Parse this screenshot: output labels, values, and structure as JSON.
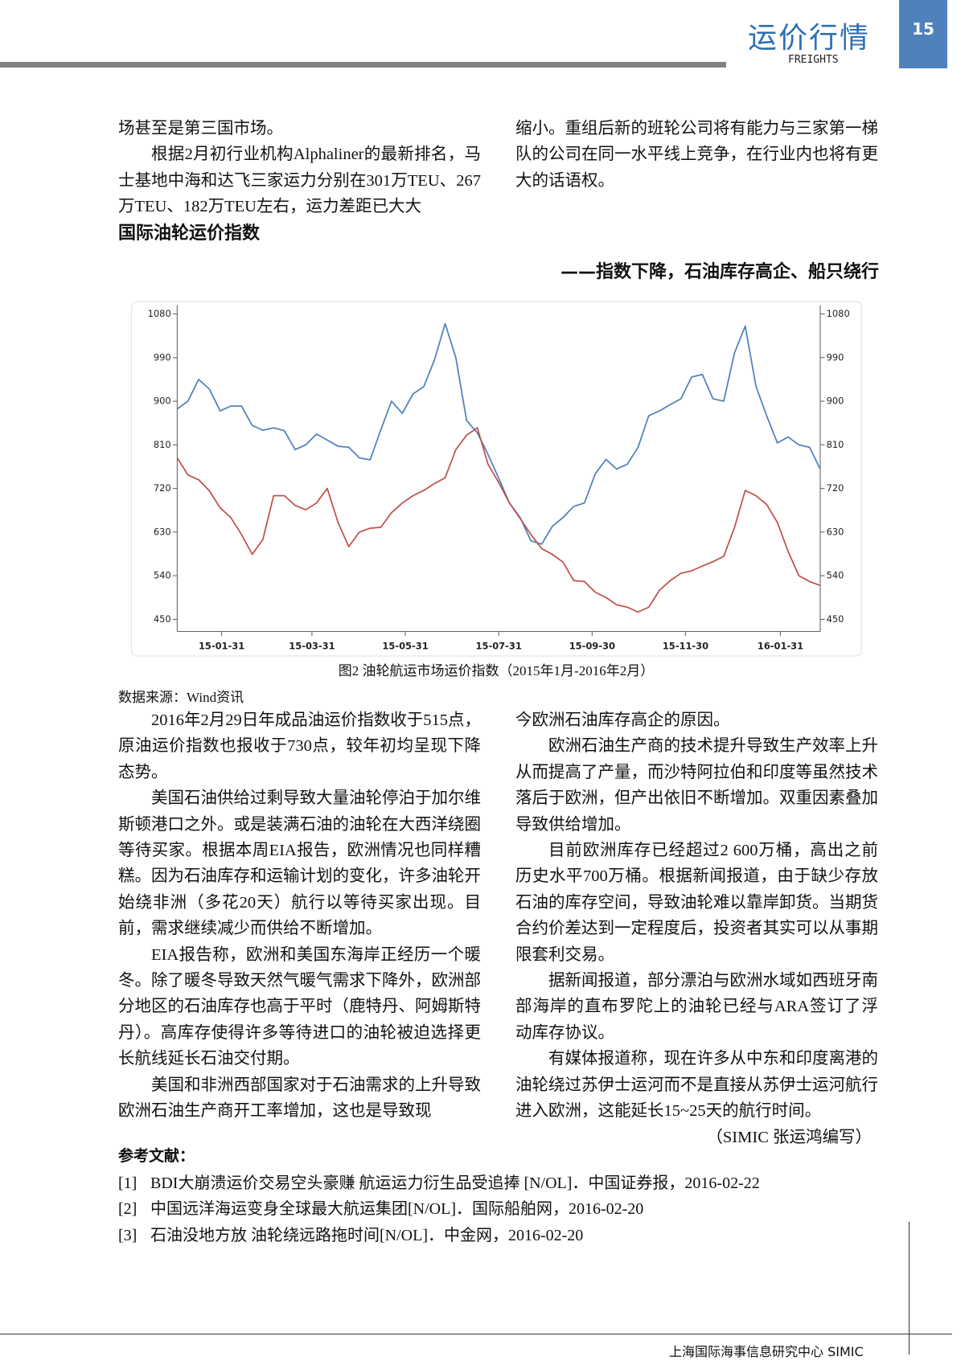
{
  "header": {
    "title": "运价行情",
    "subtitle": "FREIGHTS",
    "page": "15"
  },
  "top": {
    "left": [
      "场甚至是第三国市场。",
      "根据2月初行业机构Alphaliner的最新排名，马士基地中海和达飞三家运力分别在301万TEU、267万TEU、182万TEU左右，运力差距已大大"
    ],
    "right": [
      "缩小。重组后新的班轮公司将有能力与三家第一梯队的公司在同一水平线上竞争，在行业内也将有更大的话语权。"
    ]
  },
  "section": {
    "title": "国际油轮运价指数",
    "subtitle": "——指数下降，石油库存高企、船只绕行"
  },
  "chart_data": {
    "type": "line",
    "x": [
      "15-01-02",
      "15-01-09",
      "15-01-16",
      "15-01-23",
      "15-01-30",
      "15-02-06",
      "15-02-13",
      "15-02-20",
      "15-02-27",
      "15-03-06",
      "15-03-13",
      "15-03-20",
      "15-03-27",
      "15-04-03",
      "15-04-10",
      "15-04-17",
      "15-04-24",
      "15-05-01",
      "15-05-08",
      "15-05-15",
      "15-05-22",
      "15-05-29",
      "15-06-05",
      "15-06-12",
      "15-06-19",
      "15-06-26",
      "15-07-03",
      "15-07-10",
      "15-07-17",
      "15-07-24",
      "15-07-31",
      "15-08-07",
      "15-08-14",
      "15-08-21",
      "15-08-28",
      "15-09-04",
      "15-09-11",
      "15-09-18",
      "15-09-25",
      "15-10-02",
      "15-10-09",
      "15-10-16",
      "15-10-23",
      "15-10-30",
      "15-11-06",
      "15-11-13",
      "15-11-20",
      "15-11-27",
      "15-12-04",
      "15-12-11",
      "15-12-18",
      "15-12-25",
      "16-01-01",
      "16-01-08",
      "16-01-15",
      "16-01-22",
      "16-01-29",
      "16-02-05",
      "16-02-12",
      "16-02-19",
      "16-02-26"
    ],
    "series": [
      {
        "color": "#4f81bd",
        "values": [
          884,
          900,
          945,
          925,
          880,
          890,
          890,
          850,
          840,
          845,
          839,
          800,
          810,
          832,
          820,
          807,
          805,
          783,
          779,
          841,
          900,
          875,
          915,
          930,
          985,
          1060,
          990,
          860,
          835,
          790,
          741,
          690,
          660,
          612,
          605,
          642,
          660,
          683,
          690,
          750,
          780,
          760,
          770,
          805,
          870,
          880,
          893,
          905,
          950,
          955,
          905,
          900,
          1000,
          1055,
          931,
          870,
          814,
          826,
          810,
          805,
          760
        ]
      },
      {
        "color": "#c0504d",
        "values": [
          783,
          748,
          738,
          715,
          680,
          660,
          625,
          584,
          615,
          705,
          705,
          685,
          676,
          690,
          720,
          650,
          600,
          630,
          638,
          640,
          670,
          690,
          705,
          716,
          730,
          742,
          800,
          830,
          845,
          770,
          732,
          690,
          658,
          625,
          596,
          584,
          568,
          530,
          528,
          506,
          495,
          480,
          475,
          465,
          475,
          510,
          530,
          545,
          550,
          560,
          569,
          580,
          640,
          716,
          705,
          687,
          650,
          590,
          540,
          528,
          520
        ]
      }
    ],
    "xlim": [
      "15-01-02",
      "16-02-26"
    ],
    "xticks": [
      "15-01-31",
      "15-03-31",
      "15-05-31",
      "15-07-31",
      "15-09-30",
      "15-11-30",
      "16-01-31"
    ],
    "ylim": [
      425,
      1098
    ],
    "yticks": [
      450,
      540,
      630,
      720,
      810,
      900,
      990,
      1080
    ],
    "y2lim": [
      425,
      1098
    ],
    "y2ticks": [
      450,
      540,
      630,
      720,
      810,
      900,
      990,
      1080
    ]
  },
  "figure": {
    "caption": "图2 油轮航运市场运价指数（2015年1月-2016年2月）",
    "source": "数据来源：Wind资讯"
  },
  "body": {
    "left": [
      "2016年2月29日年成品油运价指数收于515点，原油运价指数也报收于730点，较年初均呈现下降态势。",
      "美国石油供给过剩导致大量油轮停泊于加尔维斯顿港口之外。或是装满石油的油轮在大西洋绕圈等待买家。根据本周EIA报告，欧洲情况也同样糟糕。因为石油库存和运输计划的变化，许多油轮开始绕非洲（多花20天）航行以等待买家出现。目前，需求继续减少而供给不断增加。",
      "EIA报告称，欧洲和美国东海岸正经历一个暖冬。除了暖冬导致天然气暖气需求下降外，欧洲部分地区的石油库存也高于平时（鹿特丹、阿姆斯特丹）。高库存使得许多等待进口的油轮被迫选择更长航线延长石油交付期。",
      "美国和非洲西部国家对于石油需求的上升导致欧洲石油生产商开工率增加，这也是导致现"
    ],
    "right": [
      "今欧洲石油库存高企的原因。",
      "欧洲石油生产商的技术提升导致生产效率上升从而提高了产量，而沙特阿拉伯和印度等虽然技术落后于欧洲，但产出依旧不断增加。双重因素叠加导致供给增加。",
      "目前欧洲库存已经超过2 600万桶，高出之前历史水平700万桶。根据新闻报道，由于缺少存放石油的库存空间，导致油轮难以靠岸卸货。当期货合约价差达到一定程度后，投资者其实可以从事期限套利交易。",
      "据新闻报道，部分漂泊与欧洲水域如西班牙南部海岸的直布罗陀上的油轮已经与ARA签订了浮动库存协议。",
      "有媒体报道称，现在许多从中东和印度离港的油轮绕过苏伊士运河而不是直接从苏伊士运河航行进入欧洲，这能延长15~25天的航行时间。"
    ],
    "signature": "（SIMIC 张运鸿编写）"
  },
  "references": {
    "title": "参考文献：",
    "items": [
      {
        "number": "[1]",
        "text": "BDI大崩溃运价交易空头豪赚 航运运力衍生品受追捧 [N/OL]．中国证券报，2016-02-22"
      },
      {
        "number": "[2]",
        "text": "中国远洋海运变身全球最大航运集团[N/OL]．国际船舶网，2016-02-20"
      },
      {
        "number": "[3]",
        "text": "石油没地方放 油轮绕远路拖时间[N/OL]．中金网，2016-02-20"
      }
    ]
  },
  "footer": "上海国际海事信息研究中心 SIMIC"
}
